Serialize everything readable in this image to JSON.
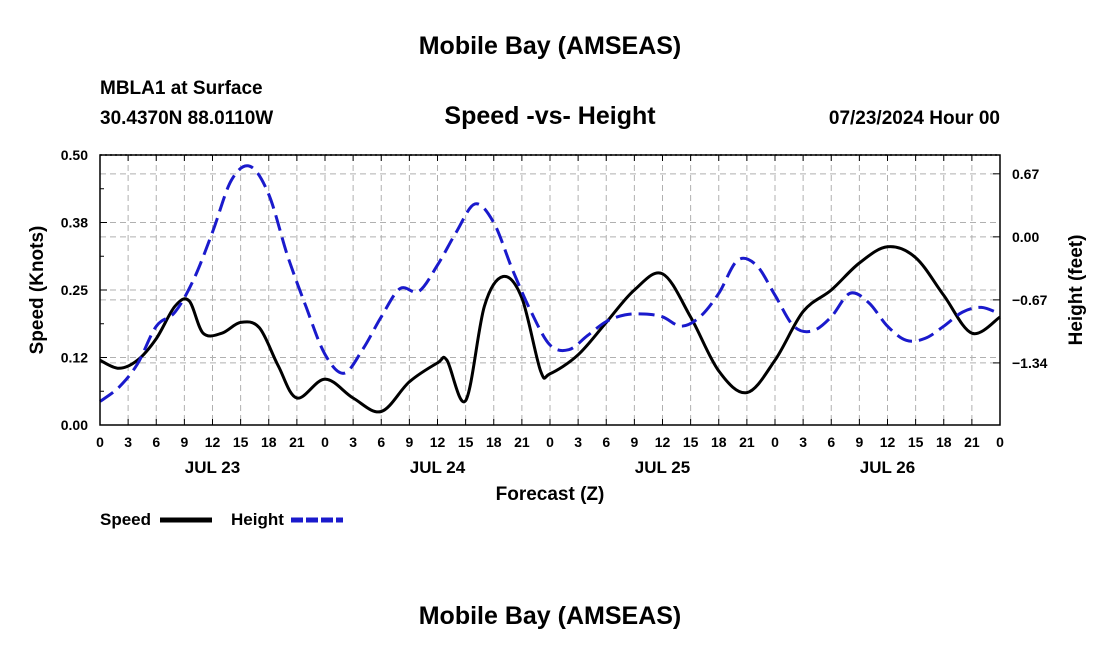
{
  "header": {
    "title": "Mobile Bay (AMSEAS)",
    "station": "MBLA1 at Surface",
    "location": "30.4370N  88.0110W",
    "subtitle": "Speed -vs- Height",
    "datetime": "07/23/2024 Hour 00",
    "footer_title": "Mobile Bay (AMSEAS)"
  },
  "chart_data": {
    "type": "line",
    "title": "Speed -vs- Height",
    "xlabel": "Forecast (Z)",
    "ylabel": "Speed (Knots)",
    "ylabel_right": "Height (feet)",
    "x_range_hours": [
      0,
      96
    ],
    "xticks": [
      "0",
      "3",
      "6",
      "9",
      "12",
      "15",
      "18",
      "21",
      "0",
      "3",
      "6",
      "9",
      "12",
      "15",
      "18",
      "21",
      "0",
      "3",
      "6",
      "9",
      "12",
      "15",
      "18",
      "21",
      "0",
      "3",
      "6",
      "9",
      "12",
      "15",
      "18",
      "21",
      "0"
    ],
    "day_labels": [
      {
        "label": "JUL 23",
        "hour": 12
      },
      {
        "label": "JUL 24",
        "hour": 36
      },
      {
        "label": "JUL 25",
        "hour": 60
      },
      {
        "label": "JUL 26",
        "hour": 84
      }
    ],
    "ylim": [
      0,
      0.5
    ],
    "yticks": [
      "0.00",
      "0.12",
      "0.25",
      "0.38",
      "0.50"
    ],
    "y2lim": [
      -2.0,
      0.87
    ],
    "y2ticks": [
      "0.67",
      "0.00",
      "-0.67",
      "-1.34"
    ],
    "y2ticks_display": [
      "0.67",
      "0.00",
      "−0.67",
      "−1.34"
    ],
    "grid": true,
    "legend_position": "bottom-left",
    "series": [
      {
        "name": "Speed",
        "color": "#000000",
        "style": "solid",
        "axis": "left",
        "x": [
          0,
          2,
          4,
          6,
          8,
          9.5,
          11,
          13,
          15,
          17,
          19,
          21,
          24,
          27,
          30,
          33,
          36,
          37,
          39,
          41,
          43,
          45,
          47,
          48,
          51,
          54,
          57,
          60,
          63,
          66,
          69,
          72,
          75,
          78,
          81,
          84,
          87,
          90,
          93,
          96
        ],
        "y": [
          0.12,
          0.105,
          0.12,
          0.16,
          0.22,
          0.23,
          0.17,
          0.17,
          0.19,
          0.18,
          0.11,
          0.05,
          0.085,
          0.05,
          0.025,
          0.08,
          0.115,
          0.12,
          0.045,
          0.22,
          0.275,
          0.235,
          0.1,
          0.095,
          0.13,
          0.19,
          0.25,
          0.28,
          0.2,
          0.1,
          0.06,
          0.12,
          0.21,
          0.25,
          0.3,
          0.33,
          0.31,
          0.24,
          0.17,
          0.2
        ]
      },
      {
        "name": "Height",
        "color": "#1a1acc",
        "style": "dashed",
        "axis": "right",
        "x": [
          0,
          2,
          4,
          6,
          8,
          10,
          12,
          14,
          16,
          18,
          20,
          22,
          24,
          26,
          28,
          30,
          32,
          34,
          36,
          38,
          40,
          42,
          44,
          46,
          48,
          50,
          52,
          54,
          56,
          58,
          60,
          62,
          64,
          66,
          68,
          70,
          72,
          74,
          76,
          78,
          80,
          82,
          84,
          86,
          88,
          90,
          92,
          94,
          96
        ],
        "y": [
          -1.75,
          -1.6,
          -1.35,
          -0.95,
          -0.8,
          -0.45,
          0.05,
          0.6,
          0.75,
          0.45,
          -0.2,
          -0.75,
          -1.25,
          -1.45,
          -1.2,
          -0.85,
          -0.55,
          -0.58,
          -0.3,
          0.05,
          0.35,
          0.15,
          -0.35,
          -0.8,
          -1.15,
          -1.2,
          -1.05,
          -0.9,
          -0.83,
          -0.82,
          -0.85,
          -0.95,
          -0.85,
          -0.6,
          -0.25,
          -0.3,
          -0.62,
          -0.95,
          -1.0,
          -0.85,
          -0.6,
          -0.7,
          -0.95,
          -1.1,
          -1.08,
          -0.95,
          -0.8,
          -0.75,
          -0.82
        ]
      }
    ],
    "legend": [
      {
        "label": "Speed",
        "color": "#000000",
        "style": "solid"
      },
      {
        "label": "Height",
        "color": "#1a1acc",
        "style": "dashed"
      }
    ]
  }
}
